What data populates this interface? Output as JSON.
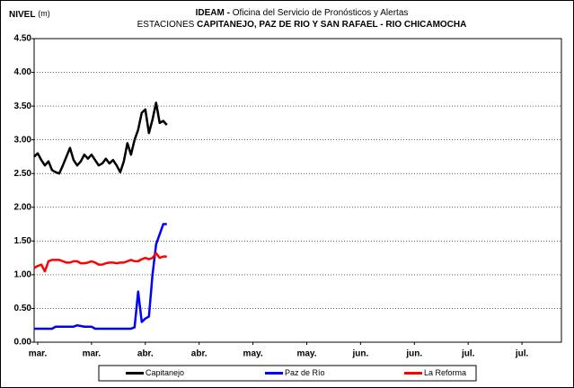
{
  "chart_data": {
    "type": "line",
    "y_label": "NIVEL",
    "y_unit": "(m)",
    "title_bold": "IDEAM -",
    "title": "Oficina del Servicio de Pronósticos y Alertas",
    "subtitle_prefix": "ESTACIONES",
    "subtitle": "CAPITANEJO, PAZ DE RIO Y SAN RAFAEL -  RIO CHICAMOCHA",
    "x": [
      0,
      1,
      2,
      3,
      4,
      5,
      6,
      7,
      8,
      9,
      10,
      11,
      12,
      13,
      14,
      15,
      16,
      17,
      18,
      19,
      20,
      21,
      22,
      23,
      24,
      25,
      26,
      27,
      28,
      29,
      30,
      31,
      32,
      33,
      34,
      35,
      36,
      37
    ],
    "xlim": [
      0,
      147
    ],
    "xticks": [
      {
        "value": 1,
        "label": "mar."
      },
      {
        "value": 16,
        "label": "mar."
      },
      {
        "value": 31,
        "label": "abr."
      },
      {
        "value": 46,
        "label": "abr."
      },
      {
        "value": 61,
        "label": "may."
      },
      {
        "value": 76,
        "label": "may."
      },
      {
        "value": 91,
        "label": "jun."
      },
      {
        "value": 106,
        "label": "jun."
      },
      {
        "value": 121,
        "label": "jul."
      },
      {
        "value": 136,
        "label": "jul."
      }
    ],
    "ylim": [
      0,
      4.5
    ],
    "yticks": [
      {
        "value": 0,
        "label": "0.00"
      },
      {
        "value": 0.5,
        "label": "0.50"
      },
      {
        "value": 1,
        "label": "1.00"
      },
      {
        "value": 1.5,
        "label": "1.50"
      },
      {
        "value": 2,
        "label": "2.00"
      },
      {
        "value": 2.5,
        "label": "2.50"
      },
      {
        "value": 3,
        "label": "3.00"
      },
      {
        "value": 3.5,
        "label": "3.50"
      },
      {
        "value": 4,
        "label": "4.00"
      },
      {
        "value": 4.5,
        "label": "4.50"
      }
    ],
    "grid": true,
    "legend": "bottom",
    "series": [
      {
        "name": "Capitanejo",
        "color": "#000000",
        "values": [
          2.75,
          2.8,
          2.7,
          2.62,
          2.68,
          2.55,
          2.52,
          2.5,
          2.62,
          2.75,
          2.88,
          2.7,
          2.62,
          2.68,
          2.78,
          2.72,
          2.78,
          2.7,
          2.62,
          2.65,
          2.72,
          2.65,
          2.7,
          2.62,
          2.52,
          2.68,
          2.95,
          2.78,
          3.0,
          3.15,
          3.4,
          3.45,
          3.1,
          3.3,
          3.55,
          3.25,
          3.28,
          3.22
        ]
      },
      {
        "name": "Paz de Río",
        "color": "#0000ff",
        "values": [
          0.2,
          0.2,
          0.2,
          0.2,
          0.2,
          0.2,
          0.23,
          0.23,
          0.23,
          0.23,
          0.23,
          0.23,
          0.25,
          0.24,
          0.23,
          0.23,
          0.23,
          0.2,
          0.2,
          0.2,
          0.2,
          0.2,
          0.2,
          0.2,
          0.2,
          0.2,
          0.2,
          0.2,
          0.22,
          0.75,
          0.3,
          0.35,
          0.38,
          1.0,
          1.45,
          1.6,
          1.75,
          1.75
        ]
      },
      {
        "name": "La Reforma",
        "color": "#ff0000",
        "values": [
          1.1,
          1.13,
          1.15,
          1.05,
          1.2,
          1.22,
          1.22,
          1.22,
          1.2,
          1.18,
          1.18,
          1.2,
          1.2,
          1.17,
          1.17,
          1.18,
          1.2,
          1.18,
          1.15,
          1.15,
          1.17,
          1.18,
          1.18,
          1.17,
          1.18,
          1.18,
          1.2,
          1.22,
          1.2,
          1.2,
          1.23,
          1.25,
          1.23,
          1.25,
          1.32,
          1.25,
          1.27,
          1.27
        ]
      }
    ]
  }
}
